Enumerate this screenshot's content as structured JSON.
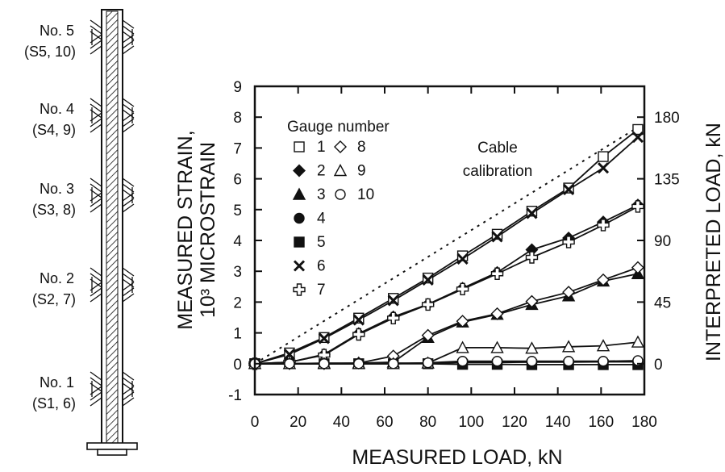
{
  "gauge_diagram": {
    "labels": [
      {
        "line1": "No. 5",
        "line2": "(S5, 10)"
      },
      {
        "line1": "No. 4",
        "line2": "(S4, 9)"
      },
      {
        "line1": "No. 3",
        "line2": "(S3, 8)"
      },
      {
        "line1": "No. 2",
        "line2": "(S2, 7)"
      },
      {
        "line1": "No. 1",
        "line2": "(S1, 6)"
      }
    ]
  },
  "chart_data": {
    "type": "line",
    "xlabel": "MEASURED LOAD, kN",
    "ylabel_line1": "MEASURED STRAIN,",
    "ylabel_line2": "10³ MICROSTRAIN",
    "y2label": "INTERPRETED LOAD, kN",
    "xlim": [
      0,
      180
    ],
    "ylim": [
      -1,
      9
    ],
    "y2lim": [
      -22.5,
      202.5
    ],
    "x_ticks": [
      0,
      20,
      40,
      60,
      80,
      100,
      120,
      140,
      160,
      180
    ],
    "y_ticks": [
      -1,
      0,
      1,
      2,
      3,
      4,
      5,
      6,
      7,
      8,
      9
    ],
    "y2_ticks": [
      0,
      45,
      90,
      135,
      180
    ],
    "legend_title": "Gauge number",
    "legend_placement": "top-left",
    "annotation_line1": "Cable",
    "annotation_line2": "calibration",
    "calibration_line": {
      "x": [
        0,
        180
      ],
      "y": [
        0,
        7.8
      ]
    },
    "x": [
      0,
      16,
      32,
      48,
      64,
      80,
      96,
      112,
      128,
      145,
      161,
      177
    ],
    "series": [
      {
        "name": "1",
        "marker": "square-open",
        "values": [
          0,
          0.35,
          0.85,
          1.48,
          2.12,
          2.78,
          3.5,
          4.2,
          4.95,
          5.7,
          6.72,
          7.6
        ]
      },
      {
        "name": "2",
        "marker": "diamond-filled",
        "values": [
          0,
          0.05,
          0.3,
          0.98,
          1.52,
          1.93,
          2.45,
          2.96,
          3.7,
          4.08,
          4.6,
          5.15
        ]
      },
      {
        "name": "3",
        "marker": "triangle-filled",
        "values": [
          0,
          0,
          0.02,
          0.02,
          0.05,
          0.85,
          1.35,
          1.6,
          1.92,
          2.2,
          2.68,
          2.92
        ]
      },
      {
        "name": "4",
        "marker": "circle-filled",
        "values": [
          0,
          0,
          0,
          0,
          0.02,
          0.02,
          0.04,
          0.04,
          0.05,
          0.05,
          0.06,
          0.06
        ]
      },
      {
        "name": "5",
        "marker": "square-filled",
        "values": [
          0,
          0,
          0,
          0,
          0,
          0,
          -0.02,
          -0.02,
          -0.03,
          -0.03,
          -0.03,
          -0.03
        ]
      },
      {
        "name": "6",
        "marker": "x",
        "values": [
          0,
          0.3,
          0.82,
          1.42,
          2.05,
          2.72,
          3.4,
          4.12,
          4.88,
          5.65,
          6.35,
          7.35
        ]
      },
      {
        "name": "7",
        "marker": "cross-open",
        "values": [
          0,
          0.05,
          0.28,
          0.95,
          1.48,
          1.92,
          2.42,
          2.92,
          3.45,
          3.95,
          4.5,
          5.1
        ]
      },
      {
        "name": "8",
        "marker": "diamond-open",
        "values": [
          0,
          0,
          0,
          0.02,
          0.25,
          0.92,
          1.38,
          1.62,
          2.02,
          2.32,
          2.72,
          3.12
        ]
      },
      {
        "name": "9",
        "marker": "triangle-open",
        "values": [
          0,
          0,
          0,
          0,
          0,
          0.02,
          0.52,
          0.52,
          0.5,
          0.55,
          0.58,
          0.7
        ]
      },
      {
        "name": "10",
        "marker": "circle-open",
        "values": [
          0,
          0,
          0,
          0,
          0,
          0.03,
          0.08,
          0.08,
          0.08,
          0.08,
          0.08,
          0.1
        ]
      }
    ]
  }
}
